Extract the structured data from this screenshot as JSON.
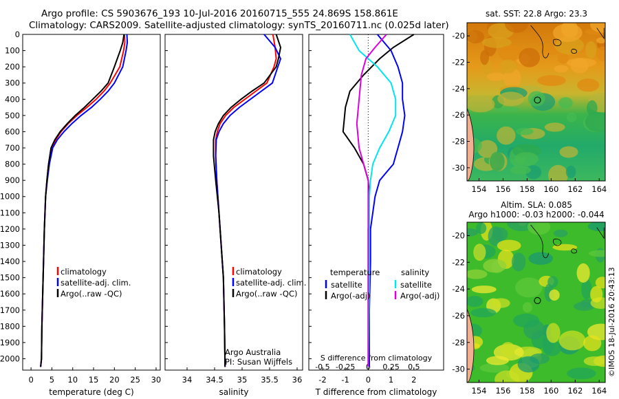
{
  "header": {
    "line1": "Argo profile: CS 5903676_193 10-Jul-2016 20160715_555 24.869S 158.861E",
    "line2": "Climatology: CARS2009. Satellite-adjusted climatology: synTS_20160711.nc (0.025d later)"
  },
  "colors": {
    "climatology": "#ff0000",
    "satellite": "#0000ff",
    "argo": "#000000",
    "t_diff": "#00e5ee",
    "s_diff": "#dd00dd"
  },
  "credit": "©IMOS 18-Jul-2016 20:43:13",
  "chart_data": [
    {
      "type": "line",
      "name": "temperature-profile",
      "xlabel": "temperature (deg C)",
      "ylabel": "",
      "xlim": [
        -2,
        31
      ],
      "ylim": [
        2070,
        0
      ],
      "xticks": [
        0,
        5,
        10,
        15,
        20,
        25,
        30
      ],
      "yticks": [
        0,
        100,
        200,
        300,
        400,
        500,
        600,
        700,
        800,
        900,
        1000,
        1100,
        1200,
        1300,
        1400,
        1500,
        1600,
        1700,
        1800,
        1900,
        2000
      ],
      "legend": [
        "climatology",
        "satellite-adj. clim.",
        "Argo(..raw -QC)"
      ],
      "series": [
        {
          "name": "climatology",
          "color": "#ff0000",
          "x": [
            22.4,
            22.5,
            22.2,
            21.3,
            19.0,
            17.5,
            15.6,
            13.4,
            11.0,
            8.9,
            7.2,
            5.9,
            4.9,
            4.2,
            3.8,
            3.5,
            3.2,
            3.0,
            2.8,
            2.6,
            2.5,
            2.3
          ],
          "y": [
            0,
            50,
            100,
            200,
            300,
            350,
            400,
            450,
            500,
            550,
            600,
            650,
            700,
            800,
            900,
            1000,
            1200,
            1400,
            1600,
            1800,
            2000,
            2050
          ]
        },
        {
          "name": "satellite-adj. clim.",
          "color": "#0000ff",
          "x": [
            23.0,
            23.1,
            22.8,
            22.0,
            20.0,
            18.5,
            16.6,
            14.5,
            12.0,
            9.8,
            7.9,
            6.3,
            5.2,
            4.4,
            3.9,
            3.5,
            3.2,
            3.0,
            2.8,
            2.6,
            2.5,
            2.3
          ],
          "y": [
            0,
            50,
            100,
            200,
            300,
            350,
            400,
            450,
            500,
            550,
            600,
            650,
            700,
            800,
            900,
            1000,
            1200,
            1400,
            1600,
            1800,
            2000,
            2050
          ]
        },
        {
          "name": "Argo(..raw -QC)",
          "color": "#000000",
          "x": [
            22.3,
            22.0,
            21.4,
            20.0,
            18.5,
            16.8,
            14.8,
            12.8,
            10.6,
            8.7,
            7.0,
            5.7,
            4.8,
            4.2,
            3.8,
            3.5,
            3.2,
            3.0,
            2.8,
            2.6,
            2.5,
            2.3
          ],
          "y": [
            0,
            50,
            100,
            200,
            300,
            350,
            400,
            450,
            500,
            550,
            600,
            650,
            700,
            800,
            900,
            1000,
            1200,
            1400,
            1600,
            1800,
            2000,
            2050
          ]
        }
      ]
    },
    {
      "type": "line",
      "name": "salinity-profile",
      "xlabel": "salinity",
      "xlim": [
        33.6,
        36.1
      ],
      "ylim": [
        2070,
        0
      ],
      "xticks": [
        34,
        34.5,
        35,
        35.5,
        36
      ],
      "legend": [
        "climatology",
        "satellite-adj. clim.",
        "Argo(..raw -QC)"
      ],
      "annotation": [
        "Argo Australia",
        "PI: Susan Wijffels"
      ],
      "series": [
        {
          "name": "climatology",
          "color": "#ff0000",
          "x": [
            35.56,
            35.6,
            35.62,
            35.58,
            35.45,
            35.25,
            35.05,
            34.85,
            34.7,
            34.6,
            34.55,
            34.52,
            34.52,
            34.54,
            34.58,
            34.62,
            34.66,
            34.68,
            34.69
          ],
          "y": [
            0,
            80,
            150,
            200,
            300,
            350,
            400,
            450,
            500,
            550,
            600,
            650,
            750,
            900,
            1100,
            1300,
            1500,
            1800,
            2050
          ]
        },
        {
          "name": "satellite-adj. clim.",
          "color": "#0000ff",
          "x": [
            35.4,
            35.6,
            35.7,
            35.65,
            35.55,
            35.35,
            35.15,
            34.95,
            34.78,
            34.66,
            34.58,
            34.53,
            34.52,
            34.54,
            34.58,
            34.62,
            34.66,
            34.68,
            34.69
          ],
          "y": [
            0,
            80,
            150,
            200,
            300,
            350,
            400,
            450,
            500,
            550,
            600,
            650,
            750,
            900,
            1100,
            1300,
            1500,
            1800,
            2050
          ]
        },
        {
          "name": "Argo(..raw -QC)",
          "color": "#000000",
          "x": [
            35.62,
            35.7,
            35.66,
            35.62,
            35.4,
            35.18,
            34.98,
            34.8,
            34.66,
            34.57,
            34.51,
            34.48,
            34.48,
            34.52,
            34.58,
            34.62,
            34.66,
            34.68,
            34.69
          ],
          "y": [
            0,
            80,
            150,
            200,
            300,
            350,
            400,
            450,
            500,
            550,
            600,
            650,
            750,
            900,
            1100,
            1300,
            1500,
            1800,
            2050
          ]
        }
      ]
    },
    {
      "type": "line",
      "name": "difference-profile",
      "xlabel": "T difference from climatology",
      "xlabel_top": "S difference from climatology",
      "xlim": [
        -2.6,
        3.3
      ],
      "ylim": [
        2070,
        0
      ],
      "xticks": [
        -2,
        -1,
        0,
        1,
        2
      ],
      "xticks_top": [
        "-0.5",
        "-0.25",
        "0",
        "0.25",
        "0.5"
      ],
      "xticks_top_pos": [
        -2,
        -1,
        0,
        1,
        2
      ],
      "legend_groups": {
        "temperature": [
          "satellite",
          "Argo(-adj)"
        ],
        "salinity": [
          "satellite",
          "Argo(-adj)"
        ]
      },
      "series": [
        {
          "name": "temperature satellite",
          "color": "#0000ff",
          "x": [
            0.4,
            1.0,
            1.3,
            1.5,
            1.5,
            1.6,
            1.5,
            1.4,
            1.3,
            1.2,
            1.1,
            0.8,
            0.5,
            0.3,
            0.2,
            0.1,
            0.1,
            0.05,
            0.05
          ],
          "y": [
            0,
            100,
            200,
            300,
            400,
            500,
            600,
            650,
            700,
            750,
            800,
            850,
            900,
            1000,
            1100,
            1200,
            1400,
            1700,
            2050
          ]
        },
        {
          "name": "temperature Argo(-adj)",
          "color": "#000000",
          "x": [
            2.0,
            1.1,
            0.5,
            -0.2,
            -0.8,
            -1.0,
            -1.1,
            -0.6,
            -0.2,
            0.0,
            0.05,
            0.0,
            0.0,
            0.0
          ],
          "y": [
            0,
            80,
            150,
            250,
            350,
            450,
            600,
            700,
            800,
            900,
            1000,
            1200,
            1500,
            2050
          ]
        },
        {
          "name": "salinity satellite",
          "color": "#00e5ee",
          "x": [
            -0.8,
            -0.4,
            0.4,
            1.0,
            1.2,
            1.2,
            0.9,
            0.5,
            0.2,
            0.1,
            0.05,
            0.05,
            0.0
          ],
          "y": [
            0,
            100,
            200,
            300,
            400,
            500,
            600,
            700,
            800,
            900,
            1000,
            1500,
            2050
          ]
        },
        {
          "name": "salinity Argo(-adj)",
          "color": "#dd00dd",
          "x": [
            0.8,
            0.3,
            -0.1,
            -0.3,
            -0.4,
            -0.5,
            -0.4,
            -0.2,
            0.0,
            0.0,
            0.0
          ],
          "y": [
            0,
            80,
            150,
            250,
            400,
            550,
            700,
            800,
            900,
            1500,
            2050
          ]
        }
      ]
    },
    {
      "type": "heatmap",
      "name": "sst-map",
      "title": "sat. SST: 22.8  Argo: 23.3",
      "xlim": [
        153,
        164.5
      ],
      "ylim": [
        -31,
        -19
      ],
      "xticks": [
        154,
        156,
        158,
        160,
        162,
        164
      ],
      "yticks": [
        -20,
        -22,
        -24,
        -26,
        -28,
        -30
      ],
      "float_location": {
        "lon": 158.861,
        "lat": -24.869
      }
    },
    {
      "type": "heatmap",
      "name": "sla-map",
      "title": "Altim. SLA: 0.085",
      "subtitle": "Argo h1000: -0.03 h2000: -0.044",
      "xlim": [
        153,
        164.5
      ],
      "ylim": [
        -31,
        -19
      ],
      "xticks": [
        154,
        156,
        158,
        160,
        162,
        164
      ],
      "yticks": [
        -20,
        -22,
        -24,
        -26,
        -28,
        -30
      ],
      "float_location": {
        "lon": 158.861,
        "lat": -24.869
      }
    }
  ]
}
